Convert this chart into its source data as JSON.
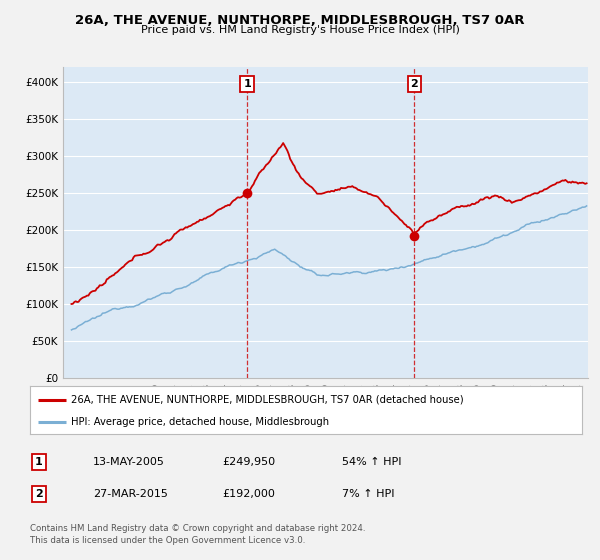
{
  "title": "26A, THE AVENUE, NUNTHORPE, MIDDLESBROUGH, TS7 0AR",
  "subtitle": "Price paid vs. HM Land Registry's House Price Index (HPI)",
  "ylabel_ticks": [
    "£0",
    "£50K",
    "£100K",
    "£150K",
    "£200K",
    "£250K",
    "£300K",
    "£350K",
    "£400K"
  ],
  "ylabel_values": [
    0,
    50000,
    100000,
    150000,
    200000,
    250000,
    300000,
    350000,
    400000
  ],
  "ylim": [
    0,
    420000
  ],
  "xlim_start": 1994.5,
  "xlim_end": 2025.5,
  "transaction1": {
    "date_num": 2005.37,
    "price": 249950,
    "label": "1"
  },
  "transaction2": {
    "date_num": 2015.24,
    "price": 192000,
    "label": "2"
  },
  "legend_line1": "26A, THE AVENUE, NUNTHORPE, MIDDLESBROUGH, TS7 0AR (detached house)",
  "legend_line2": "HPI: Average price, detached house, Middlesbrough",
  "table_row1": [
    "1",
    "13-MAY-2005",
    "£249,950",
    "54% ↑ HPI"
  ],
  "table_row2": [
    "2",
    "27-MAR-2015",
    "£192,000",
    "7% ↑ HPI"
  ],
  "footnote": "Contains HM Land Registry data © Crown copyright and database right 2024.\nThis data is licensed under the Open Government Licence v3.0.",
  "red_color": "#cc0000",
  "blue_color": "#7bafd4",
  "bg_color": "#dce9f5",
  "grid_color": "#ffffff",
  "fig_bg": "#f2f2f2"
}
